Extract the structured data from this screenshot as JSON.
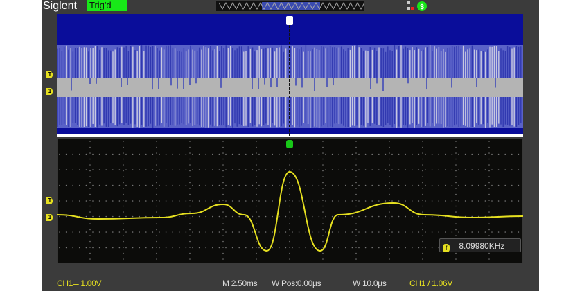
{
  "header": {
    "brand": "Siglent",
    "trigger_status": "Trig'd",
    "icons": [
      "usb-icon",
      "settings-gear-icon"
    ]
  },
  "colors": {
    "ch1": "#e6e020",
    "zoom_bg": "#0a0d9a",
    "trig_ok": "#18e818"
  },
  "markers": {
    "trigger_level": "T",
    "channel": "1"
  },
  "measurement": {
    "icon": "f",
    "text": "= 8.09980KHz"
  },
  "footer": {
    "ch1_scale": "CH1═ 1.00V",
    "main_timebase": "M 2.50ms",
    "window_pos": "W Pos:0.00µs",
    "window_timebase": "W 10.0µs",
    "trigger": "CH1 / 1.06V"
  }
}
